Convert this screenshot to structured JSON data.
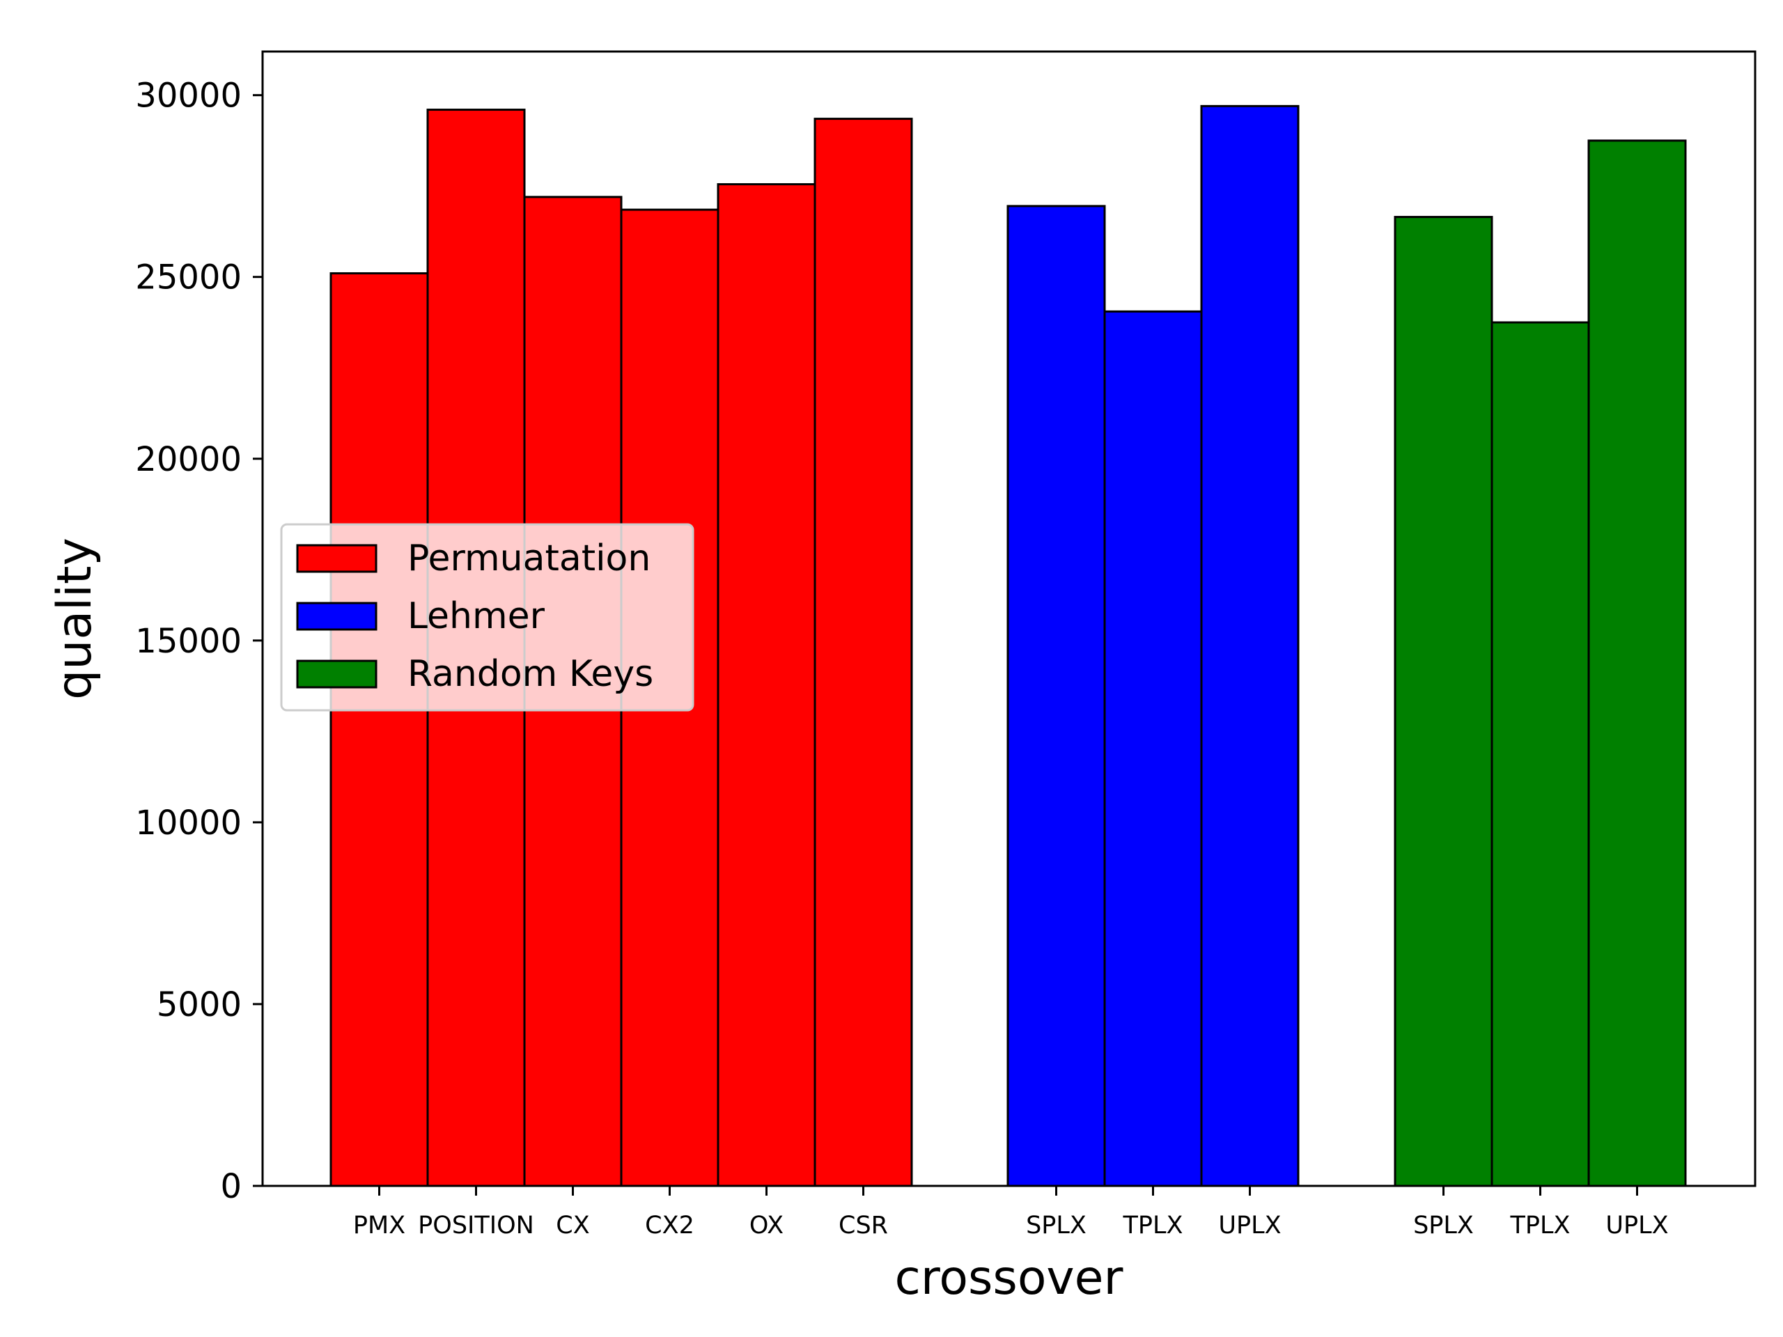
{
  "chart_data": {
    "type": "bar",
    "title": "",
    "xlabel": "crossover",
    "ylabel": "quality",
    "ylim": [
      0,
      31200
    ],
    "yticks": [
      0,
      5000,
      10000,
      15000,
      20000,
      25000,
      30000
    ],
    "grid": false,
    "legend": {
      "placement": "center-left",
      "entries": [
        "Permuatation",
        "Lehmer",
        "Random Keys"
      ]
    },
    "series": [
      {
        "name": "Permuatation",
        "color": "#ff0000",
        "categories": [
          "PMX",
          "POSITION",
          "CX",
          "CX2",
          "OX",
          "CSR"
        ],
        "values": [
          25100,
          29600,
          27200,
          26850,
          27550,
          29350
        ]
      },
      {
        "name": "Lehmer",
        "color": "#0000ff",
        "categories": [
          "SPLX",
          "TPLX",
          "UPLX"
        ],
        "values": [
          26950,
          24050,
          29700
        ]
      },
      {
        "name": "Random Keys",
        "color": "#008000",
        "categories": [
          "SPLX",
          "TPLX",
          "UPLX"
        ],
        "values": [
          26650,
          23750,
          28750
        ]
      }
    ]
  }
}
